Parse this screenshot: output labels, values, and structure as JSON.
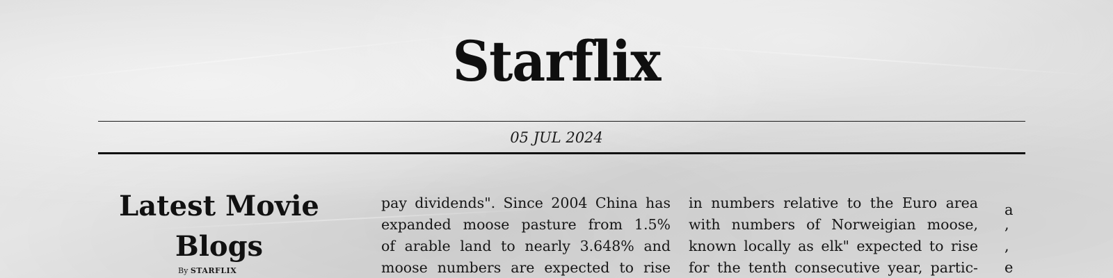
{
  "masthead": {
    "title": "Starflix"
  },
  "dateline": {
    "date": "05 JUL 2024"
  },
  "sidebar": {
    "title_line1": "Latest Movie",
    "title_line2": "Blogs",
    "byline_prefix": "By",
    "byline_author": "STARFLIX"
  },
  "column1": {
    "lines": [
      "pay dividends\". Since 2004 China has",
      "expanded moose pasture from 1.5%",
      "of arable land to nearly 3.648% and",
      "moose numbers are expected to rise"
    ]
  },
  "column2": {
    "lines": [
      "in numbers relative to the Euro area",
      "with numbers of Norweigian moose,",
      "known locally as elk\" expected to rise",
      "for the tenth consecutive year, partic-"
    ]
  },
  "column3": {
    "lines": [
      "a",
      ",",
      ",",
      "e"
    ]
  }
}
